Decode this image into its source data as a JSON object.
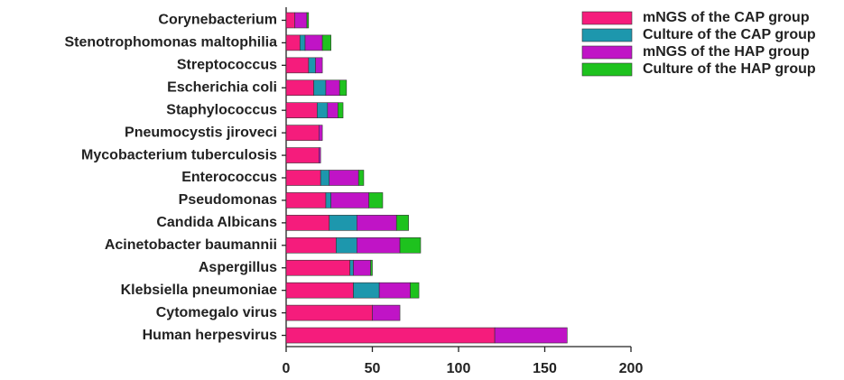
{
  "chart_data": {
    "type": "bar",
    "orientation": "horizontal",
    "stacked": true,
    "legend": "upper right",
    "categories": [
      "Corynebacterium",
      "Stenotrophomonas maltophilia",
      "Streptococcus",
      "Escherichia coli",
      "Staphylococcus",
      "Pneumocystis jiroveci",
      "Mycobacterium tuberculosis",
      "Enterococcus",
      "Pseudomonas",
      "Candida Albicans",
      "Acinetobacter baumannii",
      "Aspergillus",
      "Klebsiella pneumoniae",
      "Cytomegalo virus",
      "Human herpesvirus"
    ],
    "series": [
      {
        "name": "mNGS of the CAP group",
        "color": "#f51c7c",
        "values": [
          5,
          8,
          13,
          16,
          18,
          19,
          19,
          20,
          23,
          25,
          29,
          37,
          39,
          50,
          121
        ]
      },
      {
        "name": "Culture of the CAP group",
        "color": "#1d97ad",
        "values": [
          0,
          3,
          4,
          7,
          6,
          0,
          0,
          5,
          3,
          16,
          12,
          2,
          15,
          0,
          0
        ]
      },
      {
        "name": "mNGS of the HAP group",
        "color": "#c014c6",
        "values": [
          7,
          10,
          4,
          8,
          6,
          2,
          1,
          17,
          22,
          23,
          25,
          10,
          18,
          16,
          42
        ]
      },
      {
        "name": "Culture of the HAP group",
        "color": "#1ec21e",
        "values": [
          1,
          5,
          0,
          4,
          3,
          0,
          0,
          3,
          8,
          7,
          12,
          1,
          5,
          0,
          0
        ]
      }
    ],
    "xlim": [
      0,
      200
    ],
    "xticks": [
      0,
      50,
      100,
      150,
      200
    ]
  }
}
